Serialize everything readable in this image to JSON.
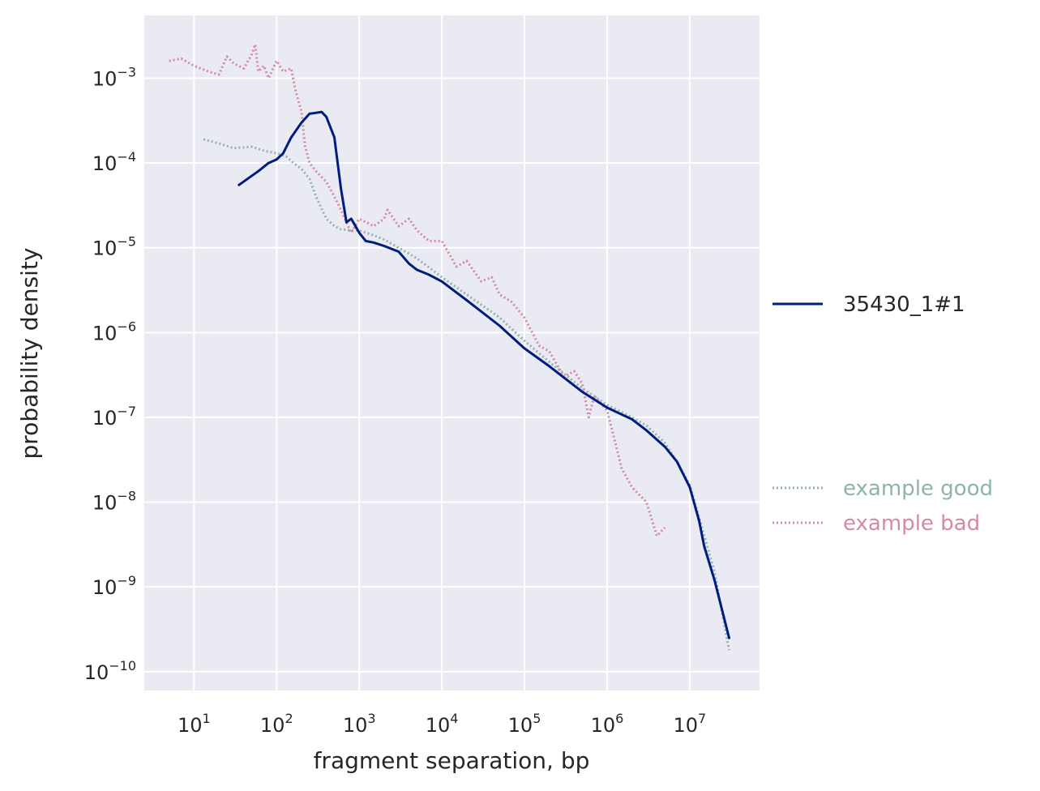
{
  "chart_data": {
    "type": "line",
    "xlabel": "fragment separation, bp",
    "ylabel": "probability density",
    "xscale": "log",
    "yscale": "log",
    "xlim": [
      2.5,
      70000000
    ],
    "ylim": [
      6e-11,
      0.0055
    ],
    "grid": true,
    "x_ticks": [
      {
        "base": "10",
        "exp": "1",
        "value": 10
      },
      {
        "base": "10",
        "exp": "2",
        "value": 100
      },
      {
        "base": "10",
        "exp": "3",
        "value": 1000
      },
      {
        "base": "10",
        "exp": "4",
        "value": 10000
      },
      {
        "base": "10",
        "exp": "5",
        "value": 100000
      },
      {
        "base": "10",
        "exp": "6",
        "value": 1000000
      },
      {
        "base": "10",
        "exp": "7",
        "value": 10000000
      }
    ],
    "y_ticks": [
      {
        "base": "10",
        "exp": "−3",
        "value": 0.001
      },
      {
        "base": "10",
        "exp": "−4",
        "value": 0.0001
      },
      {
        "base": "10",
        "exp": "−5",
        "value": 1e-05
      },
      {
        "base": "10",
        "exp": "−6",
        "value": 1e-06
      },
      {
        "base": "10",
        "exp": "−7",
        "value": 1e-07
      },
      {
        "base": "10",
        "exp": "−8",
        "value": 1e-08
      },
      {
        "base": "10",
        "exp": "−9",
        "value": 1e-09
      },
      {
        "base": "10",
        "exp": "−10",
        "value": 1e-10
      }
    ],
    "legend": {
      "placement": "right"
    },
    "series": [
      {
        "name": "example good",
        "color": "#8fb3ad",
        "style": "dotted",
        "x": [
          13,
          20,
          30,
          50,
          70,
          100,
          130,
          160,
          200,
          250,
          300,
          400,
          500,
          600,
          800,
          1000,
          1500,
          2000,
          3000,
          5000,
          10000,
          20000,
          50000,
          100000,
          200000,
          500000,
          1000000,
          2000000,
          3000000,
          5000000,
          7000000,
          10000000,
          15000000,
          20000000,
          30000000
        ],
        "y": [
          0.00019,
          0.00017,
          0.00015,
          0.000155,
          0.00014,
          0.00013,
          0.00012,
          0.0001,
          8.5e-05,
          6.5e-05,
          4e-05,
          2.2e-05,
          1.8e-05,
          1.65e-05,
          1.6e-05,
          1.6e-05,
          1.4e-05,
          1.25e-05,
          1e-05,
          7.5e-06,
          4.5e-06,
          2.8e-06,
          1.5e-06,
          8e-07,
          4.5e-07,
          2.2e-07,
          1.4e-07,
          1e-07,
          8e-08,
          5e-08,
          3e-08,
          1.6e-08,
          4e-09,
          1.5e-09,
          1.8e-10
        ]
      },
      {
        "name": "example bad",
        "color": "#d48aa4",
        "style": "dotted",
        "x": [
          5,
          7,
          10,
          15,
          20,
          25,
          30,
          40,
          50,
          55,
          60,
          70,
          80,
          100,
          120,
          150,
          170,
          200,
          220,
          250,
          300,
          400,
          500,
          600,
          800,
          1000,
          1500,
          2000,
          2200,
          3000,
          4000,
          5000,
          7000,
          10000,
          15000,
          20000,
          30000,
          40000,
          50000,
          70000,
          100000,
          150000,
          200000,
          300000,
          400000,
          500000,
          600000,
          700000,
          1000000,
          1200000,
          1500000,
          2000000,
          3000000,
          4000000,
          5000000
        ],
        "y": [
          0.0016,
          0.0017,
          0.0014,
          0.0012,
          0.0011,
          0.0018,
          0.0015,
          0.0013,
          0.0019,
          0.0025,
          0.0012,
          0.0014,
          0.001,
          0.0016,
          0.0012,
          0.0013,
          0.0007,
          0.0004,
          0.00016,
          0.0001,
          8e-05,
          6e-05,
          4e-05,
          2.8e-05,
          1.5e-05,
          2.2e-05,
          1.8e-05,
          2.2e-05,
          2.8e-05,
          1.8e-05,
          2.2e-05,
          1.6e-05,
          1.2e-05,
          1.2e-05,
          6e-06,
          7e-06,
          4e-06,
          4.5e-06,
          2.8e-06,
          2.3e-06,
          1.5e-06,
          7e-07,
          6e-07,
          3e-07,
          3.5e-07,
          2.5e-07,
          1e-07,
          1.8e-07,
          1.2e-07,
          6e-08,
          2.5e-08,
          1.5e-08,
          1e-08,
          4e-09,
          5e-09
        ]
      },
      {
        "name": "35430_1#1",
        "color": "#001c7f",
        "style": "solid",
        "x": [
          35,
          60,
          80,
          100,
          120,
          150,
          200,
          250,
          300,
          350,
          400,
          500,
          600,
          700,
          800,
          1000,
          1200,
          1500,
          2000,
          3000,
          4000,
          5000,
          7000,
          10000,
          20000,
          50000,
          100000,
          200000,
          500000,
          1000000,
          2000000,
          3000000,
          5000000,
          7000000,
          10000000,
          13000000,
          15000000,
          20000000,
          30000000
        ],
        "y": [
          5.5e-05,
          8e-05,
          0.0001,
          0.00011,
          0.00013,
          0.0002,
          0.0003,
          0.00038,
          0.00039,
          0.0004,
          0.00035,
          0.0002,
          5e-05,
          2e-05,
          2.2e-05,
          1.5e-05,
          1.2e-05,
          1.15e-05,
          1.05e-05,
          9e-06,
          6.5e-06,
          5.5e-06,
          4.8e-06,
          4e-06,
          2.4e-06,
          1.2e-06,
          6.5e-07,
          4e-07,
          2e-07,
          1.3e-07,
          9.5e-08,
          7e-08,
          4.5e-08,
          3e-08,
          1.5e-08,
          6e-09,
          3e-09,
          1.2e-09,
          2.5e-10
        ]
      }
    ]
  }
}
